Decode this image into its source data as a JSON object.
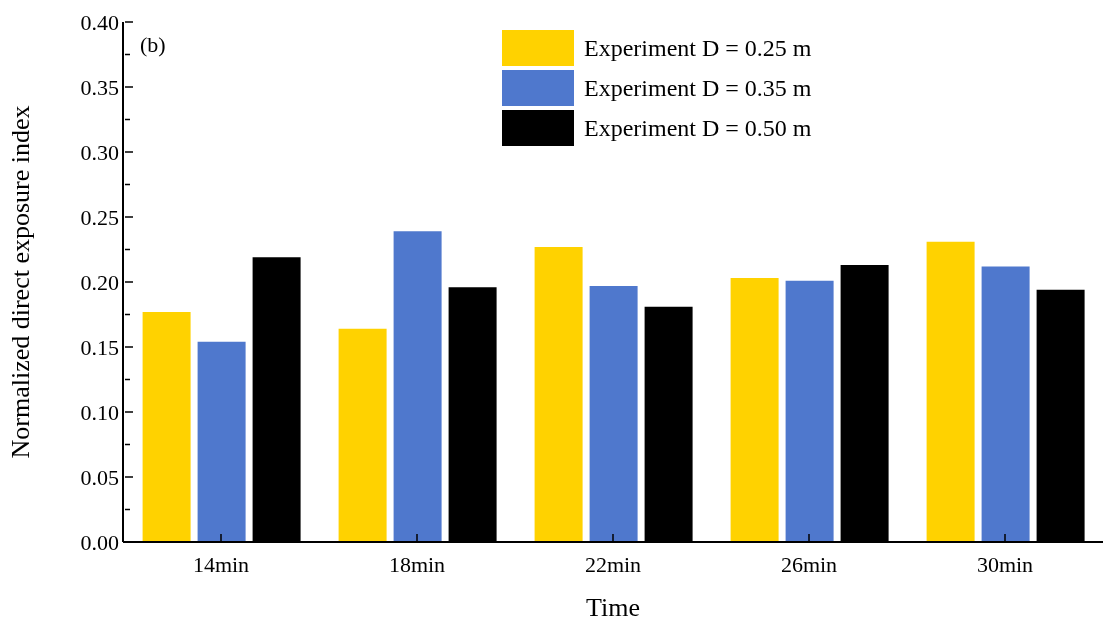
{
  "chart_data": {
    "type": "bar",
    "categories": [
      "14min",
      "18min",
      "22min",
      "26min",
      "30min"
    ],
    "series": [
      {
        "name": "Experiment D = 0.25 m",
        "color": "#ffd200",
        "values": [
          0.177,
          0.164,
          0.227,
          0.203,
          0.231
        ]
      },
      {
        "name": "Experiment D = 0.35 m",
        "color": "#4f78cd",
        "values": [
          0.154,
          0.239,
          0.197,
          0.201,
          0.212
        ]
      },
      {
        "name": "Experiment D = 0.50 m",
        "color": "#000000",
        "values": [
          0.219,
          0.196,
          0.181,
          0.213,
          0.194
        ]
      }
    ],
    "xlabel": "Time",
    "ylabel": "Normalized direct exposure index",
    "annotations": [
      "(b)"
    ],
    "ylim": [
      0,
      0.4
    ],
    "yticks": [
      {
        "value": 0,
        "label": "0.00"
      },
      {
        "value": 0.025,
        "label": null
      },
      {
        "value": 0.05,
        "label": "0.05"
      },
      {
        "value": 0.075,
        "label": null
      },
      {
        "value": 0.1,
        "label": "0.10"
      },
      {
        "value": 0.125,
        "label": null
      },
      {
        "value": 0.15,
        "label": "0.15"
      },
      {
        "value": 0.175,
        "label": null
      },
      {
        "value": 0.2,
        "label": "0.20"
      },
      {
        "value": 0.225,
        "label": null
      },
      {
        "value": 0.25,
        "label": "0.25"
      },
      {
        "value": 0.275,
        "label": null
      },
      {
        "value": 0.3,
        "label": "0.30"
      },
      {
        "value": 0.325,
        "label": null
      },
      {
        "value": 0.35,
        "label": "0.35"
      },
      {
        "value": 0.375,
        "label": null
      },
      {
        "value": 0.4,
        "label": "0.40"
      }
    ],
    "grid": false,
    "legend": "top right"
  }
}
